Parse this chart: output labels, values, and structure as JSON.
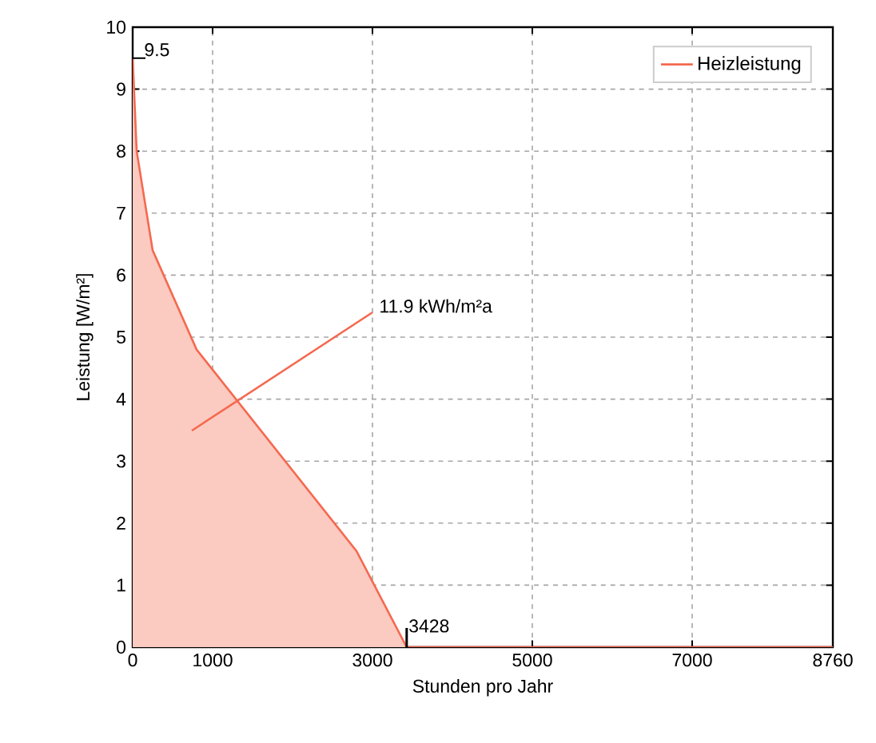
{
  "chart_data": {
    "type": "area",
    "xlabel": "Stunden pro Jahr",
    "ylabel": "Leistung [W/m²]",
    "series": [
      {
        "name": "Heizleistung",
        "color": "#f4694f",
        "x": [
          0,
          50,
          250,
          800,
          2800,
          3428,
          8760
        ],
        "values": [
          9.5,
          8.0,
          6.4,
          4.8,
          1.55,
          0,
          0
        ]
      }
    ],
    "xlim": [
      0,
      8760
    ],
    "xticks": [
      0,
      1000,
      3000,
      5000,
      7000,
      8760
    ],
    "ylim": [
      0,
      10
    ],
    "yticks": [
      0,
      1,
      2,
      3,
      4,
      5,
      6,
      7,
      8,
      9,
      10
    ],
    "grid": true,
    "legend": "top right",
    "annotations": [
      {
        "text": "9.5",
        "x": 0,
        "y": 9.5
      },
      {
        "text": "3428",
        "x": 3428,
        "y": 0
      },
      "11.9 kWh/m²a"
    ]
  }
}
